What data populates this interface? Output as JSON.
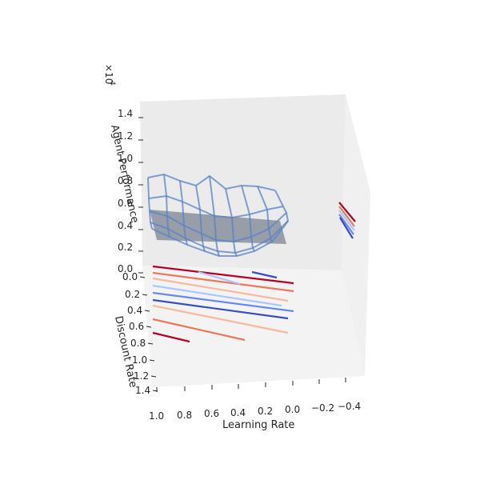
{
  "chart_data": {
    "type": "3d-surface-wireframe-contour",
    "title": "",
    "xlabel": "Learning Rate",
    "ylabel": "Discount Rate",
    "zlabel": "Agent Performance",
    "z_offset_label": "×10",
    "z_offset_exponent": "4",
    "x_ticks": [
      "1.0",
      "0.8",
      "0.6",
      "0.4",
      "0.2",
      "0.0",
      "−0.2",
      "−0.4"
    ],
    "y_ticks": [
      "0.0",
      "0.2",
      "0.4",
      "0.6",
      "0.8",
      "1.0",
      "1.2",
      "1.4"
    ],
    "z_ticks": [
      "0.0",
      "0.2",
      "0.4",
      "0.6",
      "0.8",
      "1.0",
      "1.2",
      "1.4"
    ],
    "colormap": "coolwarm",
    "wireframe_color": "#5b82c4",
    "surface_color": "#6b7486",
    "contour_levels": [
      0.2,
      0.4,
      0.6,
      0.8,
      1.0,
      1.2,
      1.4
    ],
    "grid": false
  }
}
